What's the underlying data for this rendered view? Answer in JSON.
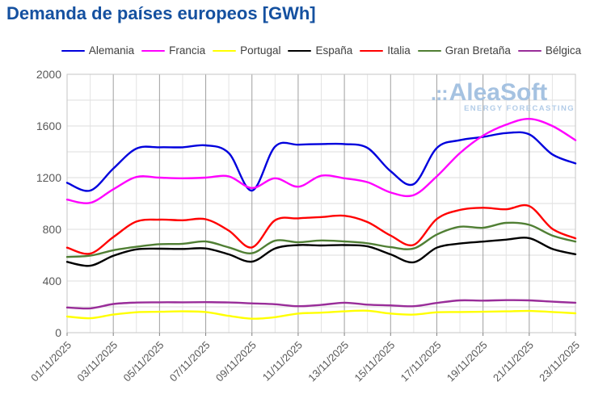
{
  "title": "Demanda de países europeos [GWh]",
  "watermark": {
    "logo_dots": ".::",
    "logo_name": "AleaSoft",
    "tagline": "ENERGY FORECASTING",
    "logo_color": "#a5c2e1",
    "tagline_color": "#b2cce8"
  },
  "chart_data": {
    "type": "line",
    "title": "Demanda de países europeos [GWh]",
    "xlabel": "",
    "ylabel": "GWh",
    "x_unit": "day of November 2025",
    "x": [
      1,
      2,
      3,
      4,
      5,
      6,
      7,
      8,
      9,
      10,
      11,
      12,
      13,
      14,
      15,
      16,
      17,
      18,
      19,
      20,
      21,
      22,
      23
    ],
    "x_tick_days": [
      1,
      3,
      5,
      7,
      9,
      11,
      13,
      15,
      17,
      19,
      21,
      23
    ],
    "x_tick_labels": [
      "01/11/2025",
      "03/11/2025",
      "05/11/2025",
      "07/11/2025",
      "09/11/2025",
      "11/11/2025",
      "13/11/2025",
      "15/11/2025",
      "17/11/2025",
      "19/11/2025",
      "21/11/2025",
      "23/11/2025"
    ],
    "ylim": [
      0,
      2000
    ],
    "y_ticks": [
      0,
      400,
      800,
      1200,
      1600,
      2000
    ],
    "y_minor_step": 200,
    "grid": true,
    "legend_position": "top",
    "series": [
      {
        "name": "Alemania",
        "color": "#0000dd",
        "values": [
          1160,
          1100,
          1270,
          1425,
          1435,
          1435,
          1450,
          1390,
          1100,
          1440,
          1455,
          1460,
          1460,
          1430,
          1250,
          1150,
          1430,
          1490,
          1515,
          1545,
          1535,
          1380,
          1310
        ]
      },
      {
        "name": "Francia",
        "color": "#ff00ff",
        "values": [
          1030,
          1005,
          1110,
          1205,
          1200,
          1195,
          1200,
          1210,
          1120,
          1195,
          1130,
          1215,
          1195,
          1165,
          1085,
          1065,
          1210,
          1390,
          1525,
          1610,
          1655,
          1600,
          1490
        ]
      },
      {
        "name": "Portugal",
        "color": "#ffff00",
        "values": [
          125,
          112,
          140,
          158,
          162,
          165,
          160,
          130,
          108,
          120,
          148,
          155,
          165,
          170,
          148,
          140,
          158,
          160,
          162,
          165,
          168,
          160,
          150
        ]
      },
      {
        "name": "España",
        "color": "#000000",
        "values": [
          548,
          518,
          595,
          645,
          650,
          648,
          652,
          606,
          550,
          652,
          678,
          675,
          678,
          668,
          606,
          545,
          658,
          690,
          705,
          720,
          732,
          648,
          607
        ]
      },
      {
        "name": "Italia",
        "color": "#ff0000",
        "values": [
          658,
          612,
          740,
          860,
          875,
          870,
          878,
          790,
          660,
          870,
          885,
          895,
          905,
          856,
          752,
          680,
          880,
          950,
          967,
          955,
          980,
          804,
          730
        ]
      },
      {
        "name": "Gran Bretaña",
        "color": "#507f34",
        "values": [
          586,
          596,
          638,
          665,
          685,
          688,
          706,
          660,
          615,
          712,
          700,
          714,
          706,
          692,
          662,
          652,
          760,
          820,
          812,
          850,
          835,
          752,
          705
        ]
      },
      {
        "name": "Bélgica",
        "color": "#992d99",
        "values": [
          195,
          188,
          222,
          233,
          235,
          235,
          236,
          234,
          227,
          220,
          205,
          215,
          232,
          217,
          211,
          205,
          230,
          250,
          248,
          252,
          250,
          240,
          232
        ]
      }
    ]
  },
  "axis_style": {
    "minor_grid_color": "#dcdcdc",
    "major_vgrid_color": "#9f9f9f",
    "border_color": "#c6c6c6",
    "tick_color": "#808080",
    "label_color": "#595959"
  }
}
